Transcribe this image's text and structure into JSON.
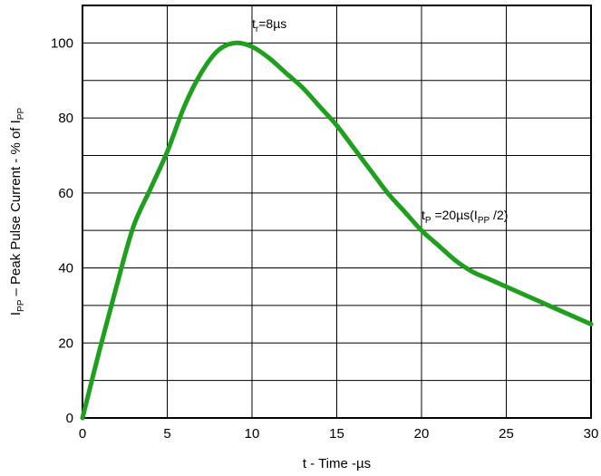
{
  "chart_data": {
    "type": "line",
    "title": "",
    "xlabel": "t - Time -µs",
    "ylabel": {
      "pre": "I",
      "pre_sub": "PP",
      "main": " – Peak Pulse Current - % of  I",
      "post_sub": "PP"
    },
    "xlim": [
      0,
      30
    ],
    "ylim": [
      0,
      110
    ],
    "x_ticks": [
      0,
      5,
      10,
      15,
      20,
      25,
      30
    ],
    "y_ticks": [
      0,
      20,
      40,
      60,
      80,
      100
    ],
    "x_grid_step": 5,
    "y_grid_step": 10,
    "grid": true,
    "series": [
      {
        "color": "#1ea01e",
        "x": [
          0,
          1,
          2,
          3,
          4,
          5,
          6,
          7,
          8,
          9,
          10,
          11,
          12,
          13,
          14,
          15,
          16,
          17,
          18,
          19,
          20,
          21,
          22,
          23,
          24,
          25,
          26,
          27,
          28,
          29,
          30
        ],
        "y": [
          0,
          18,
          35,
          51,
          61,
          71,
          83,
          92,
          98,
          100,
          99,
          96,
          92,
          88,
          83,
          78,
          72,
          66,
          60,
          55,
          50,
          46,
          42,
          39,
          37,
          35,
          33,
          31,
          29,
          27,
          25
        ]
      }
    ],
    "annotations": {
      "tr": {
        "pre": "t",
        "sub": "r",
        "post": "=8µs",
        "x": 10,
        "y": 104
      },
      "tp": {
        "pre": "t",
        "sub": "P",
        "mid": " =20µs(I",
        "sub2": "PP",
        "post": " /2)",
        "x": 20,
        "y": 53
      }
    }
  }
}
